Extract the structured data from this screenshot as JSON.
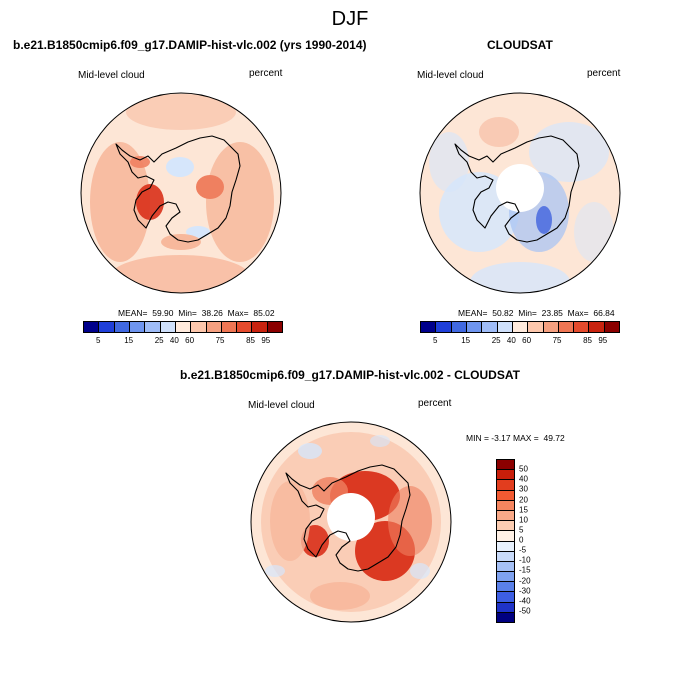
{
  "season": "DJF",
  "panels": [
    {
      "title": "b.e21.B1850cmip6.f09_g17.DAMIP-hist-vlc.002 (yrs 1990-2014)",
      "left_label": "Mid-level cloud",
      "right_label": "percent",
      "stats": "MEAN=  59.90  Min=  38.26  Max=  85.02"
    },
    {
      "title": "CLOUDSAT",
      "left_label": "Mid-level cloud",
      "right_label": "percent",
      "stats": "MEAN=  50.82  Min=  23.85  Max=  66.84"
    },
    {
      "title": "b.e21.B1850cmip6.f09_g17.DAMIP-hist-vlc.002 - CLOUDSAT",
      "left_label": "Mid-level cloud",
      "right_label": "percent",
      "stats": "MIN = -3.17 MAX =  49.72"
    }
  ],
  "abs_colorbar": {
    "colors": [
      "#00008b",
      "#1f3fd9",
      "#4169e1",
      "#6f95ef",
      "#9fbcf7",
      "#cfe0fb",
      "#ffeadc",
      "#fdc7ac",
      "#f5a080",
      "#ef7654",
      "#e54b2d",
      "#c9230f",
      "#8b0000"
    ],
    "tick_labels": [
      "5",
      "15",
      "25",
      "40",
      "60",
      "75",
      "85",
      "95"
    ]
  },
  "diff_colorbar": {
    "colors": [
      "#8b0000",
      "#c81e0a",
      "#e23d1e",
      "#f25a32",
      "#f5855f",
      "#f9a988",
      "#fccdb2",
      "#fff1e6",
      "#e8f1fd",
      "#c9dbfa",
      "#a6c1f6",
      "#7fa2f0",
      "#5a80e9",
      "#3d5ee3",
      "#1f33c8",
      "#000080"
    ],
    "tick_labels": [
      "50",
      "40",
      "30",
      "20",
      "15",
      "10",
      "5",
      "0",
      "-5",
      "-10",
      "-15",
      "-20",
      "-30",
      "-40",
      "-50"
    ]
  },
  "palette": {
    "base": "#fde6d6",
    "light_blue": "#d6e6fb",
    "mid_blue": "#a9c4f3",
    "dark_blue": "#4f6fe0",
    "light_red": "#f7b89c",
    "mid_red": "#ef8060",
    "dark_red": "#d9301a"
  },
  "icons": [
    "antarctica-coastline",
    "polar-stereographic-map"
  ]
}
